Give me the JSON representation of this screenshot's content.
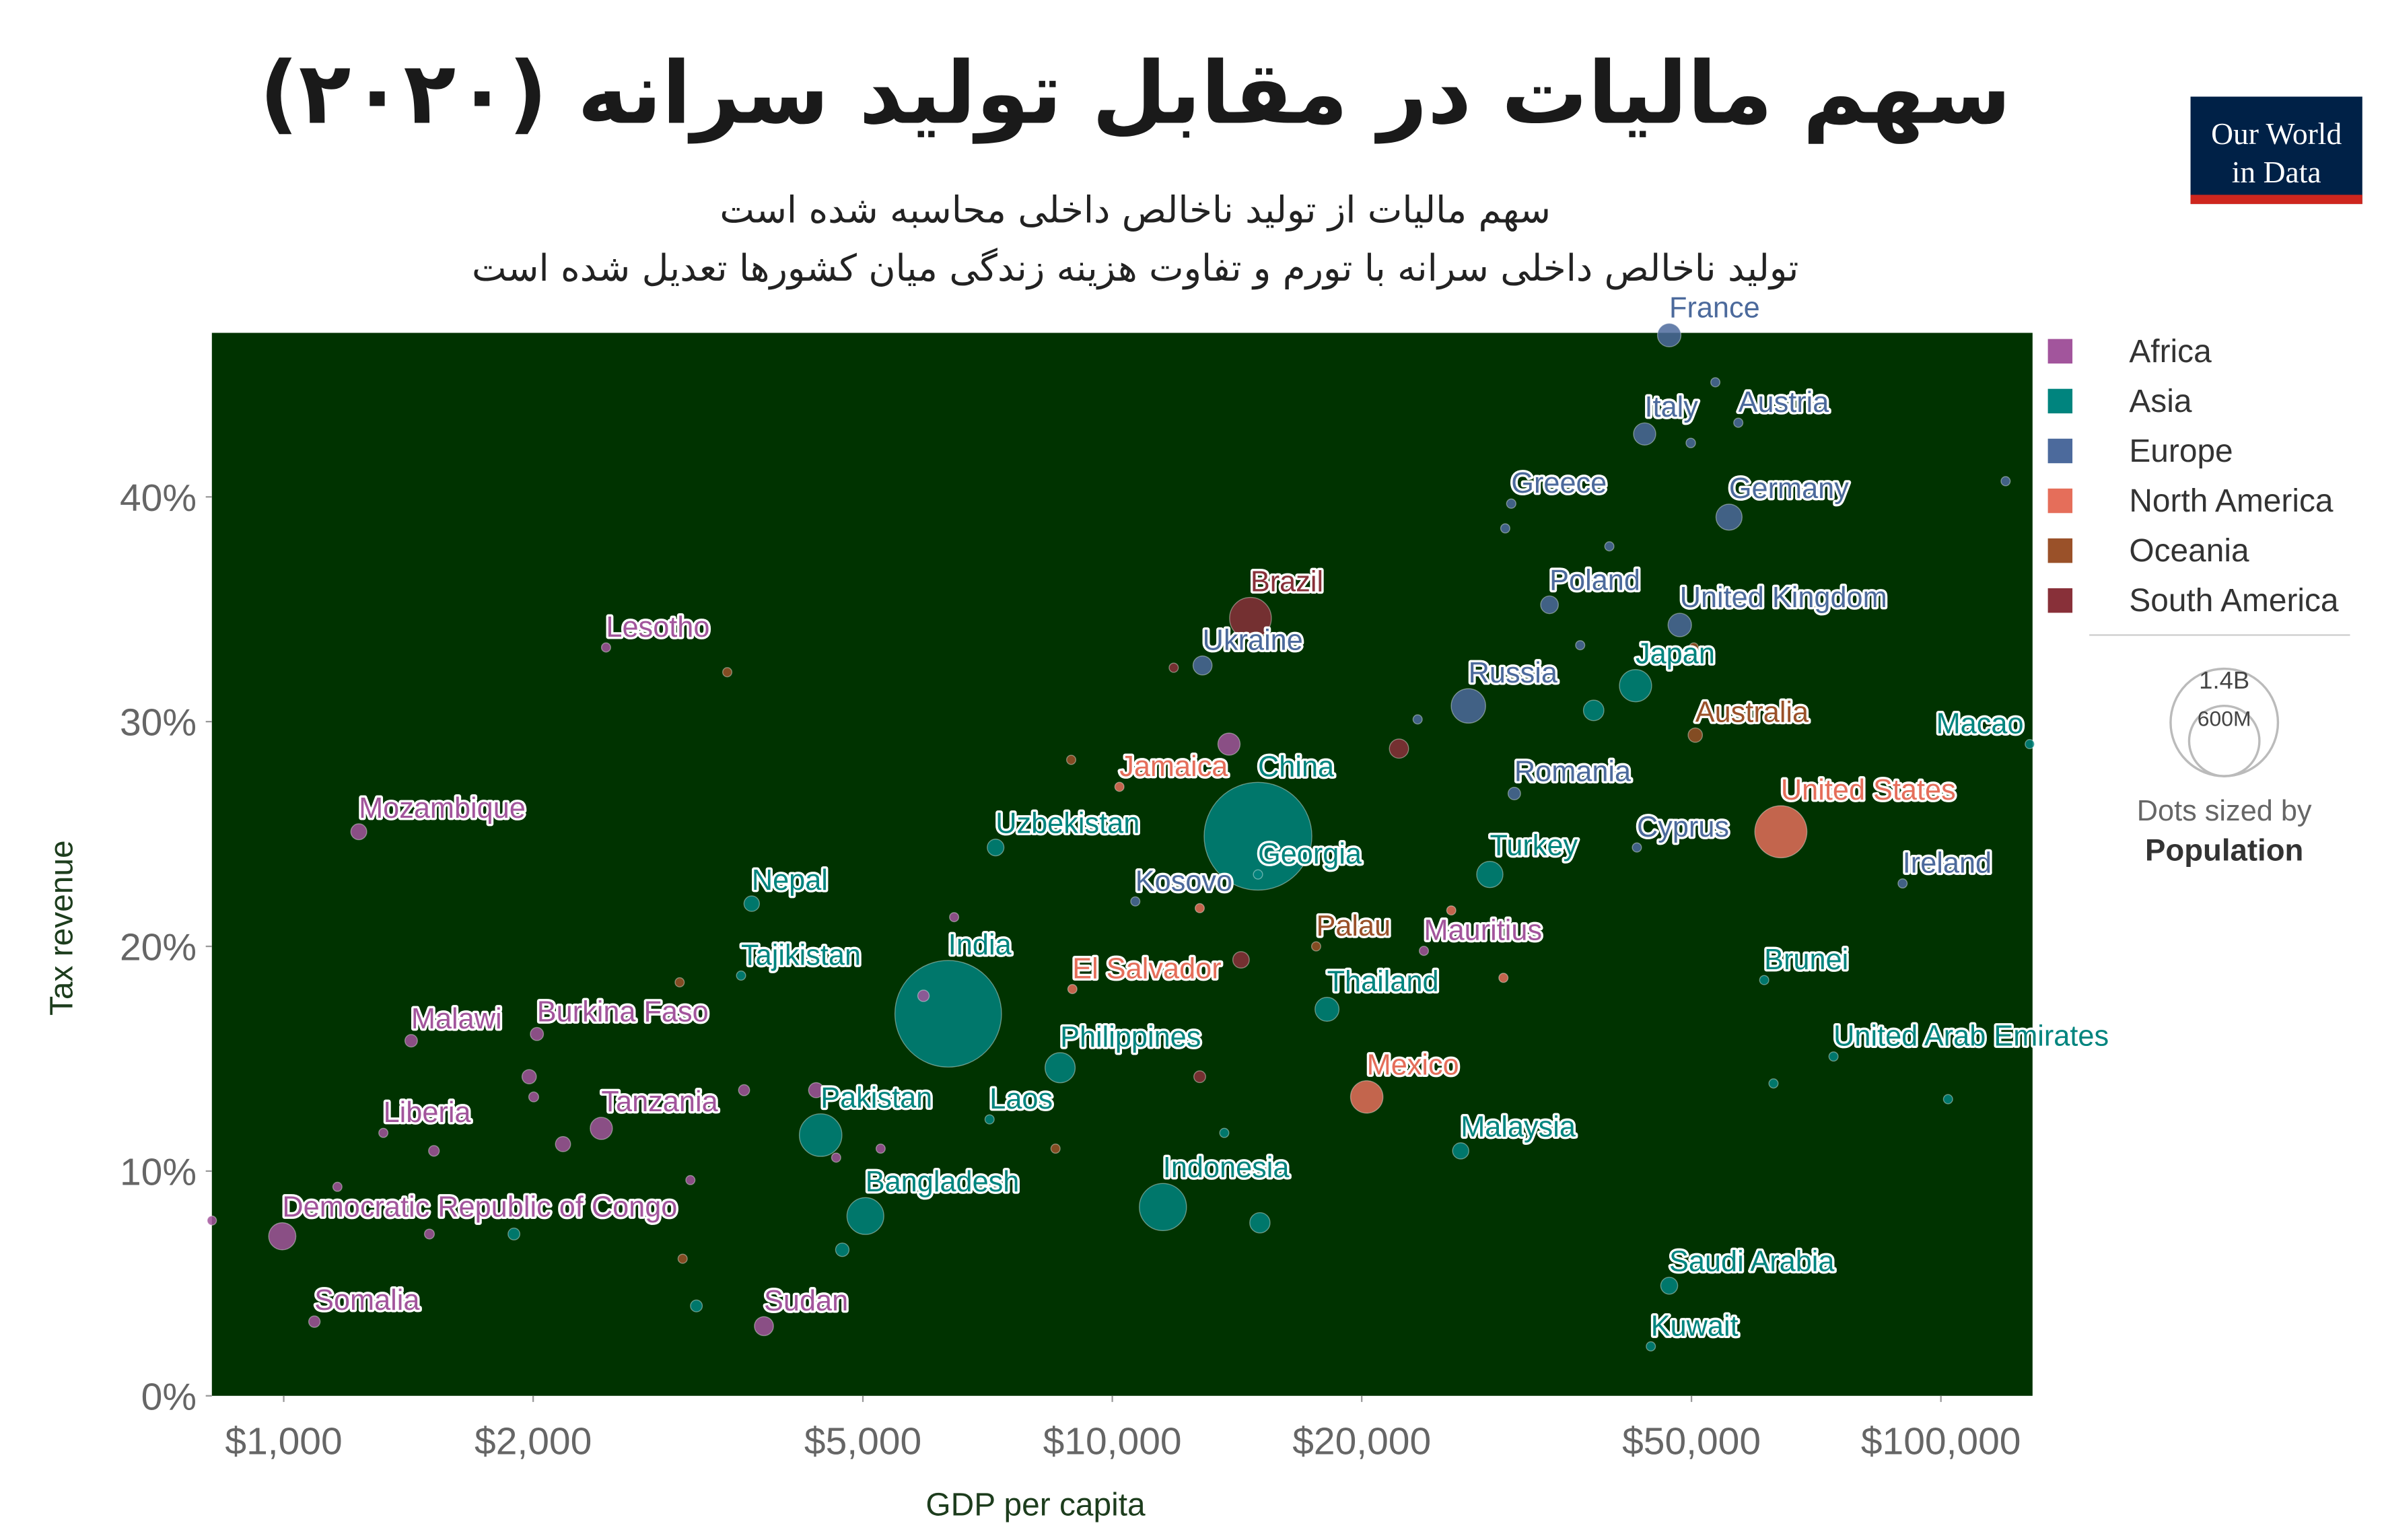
{
  "logo": [
    "Our World",
    "in Data"
  ],
  "chart_data": {
    "type": "scatter",
    "title": "سهم مالیات در مقابل تولید سرانه (۲۰۲۰)",
    "subtitle": [
      "سهم مالیات از تولید ناخالص داخلی محاسبه شده است",
      "تولید ناخالص داخلی سرانه با تورم و تفاوت هزینه زندگی میان کشورها تعدیل شده است"
    ],
    "xlabel": "GDP per capita",
    "ylabel": "Tax revenue",
    "xlog": true,
    "grid": false,
    "xlim": [
      819,
      129000
    ],
    "ylim": [
      0,
      47.3
    ],
    "xticks": [
      {
        "value": 1000,
        "label": "$1,000"
      },
      {
        "value": 2000,
        "label": "$2,000"
      },
      {
        "value": 5000,
        "label": "$5,000"
      },
      {
        "value": 10000,
        "label": "$10,000"
      },
      {
        "value": 20000,
        "label": "$20,000"
      },
      {
        "value": 50000,
        "label": "$50,000"
      },
      {
        "value": 100000,
        "label": "$100,000"
      }
    ],
    "yticks": [
      {
        "value": 0,
        "label": "0%"
      },
      {
        "value": 10,
        "label": "10%"
      },
      {
        "value": 20,
        "label": "20%"
      },
      {
        "value": 30,
        "label": "30%"
      },
      {
        "value": 40,
        "label": "40%"
      }
    ],
    "legend": "right",
    "size_legend": {
      "title": "Dots sized by",
      "variable": "Population",
      "values": [
        {
          "value": 1400000000,
          "label": "1.4B"
        },
        {
          "value": 600000000,
          "label": "600M"
        }
      ]
    },
    "series": [
      {
        "name": "Africa",
        "color": "#a2559c",
        "labels": [
          "Mozambique",
          "Lesotho",
          "Malawi",
          "Burkina Faso",
          "Liberia",
          "Tanzania",
          "Democratic Republic of Congo",
          "Somalia",
          "Sudan",
          "Mauritius",
          null,
          null,
          null,
          null,
          null,
          null,
          null,
          null,
          null,
          null,
          null,
          null,
          null,
          null,
          null,
          null
        ],
        "x": [
          1232,
          2449,
          1425,
          2021,
          1319,
          2417,
          996,
          1089,
          3798,
          23770,
          819,
          1161,
          1499,
          1518,
          1978,
          2003,
          2173,
          3096,
          3594,
          4391,
          4642,
          5253,
          5917,
          6443,
          13830,
          11800
        ],
        "values": [
          25.1,
          33.3,
          15.8,
          16.1,
          11.7,
          11.9,
          7.1,
          3.3,
          3.1,
          19.8,
          7.8,
          9.3,
          7.2,
          10.9,
          14.2,
          13.3,
          11.2,
          9.6,
          13.6,
          13.6,
          10.6,
          11.0,
          17.8,
          21.3,
          29.0,
          15.9
        ],
        "sizes": [
          31000000,
          2200000,
          19000000,
          21000000,
          5000000,
          60000000,
          90000000,
          16000000,
          44000000,
          1300000,
          5000000,
          8000000,
          12000000,
          14000000,
          25000000,
          12000000,
          28000000,
          10000000,
          15000000,
          28000000,
          6000000,
          8000000,
          16000000,
          6000000,
          60000000,
          2500000
        ]
      },
      {
        "name": "Asia",
        "color": "#00847e",
        "labels": [
          "India",
          "China",
          "Nepal",
          "Pakistan",
          "Bangladesh",
          "Indonesia",
          "Philippines",
          "Japan",
          "Thailand",
          "Turkey",
          "Tajikistan",
          "Uzbekistan",
          "Laos",
          "Georgia",
          "Malaysia",
          "United Arab Emirates",
          "Brunei",
          "Saudi Arabia",
          "Kuwait",
          "Macao",
          null,
          null,
          null,
          null,
          null,
          null,
          null,
          null
        ],
        "x": [
          6338,
          14990,
          3671,
          4446,
          5035,
          11510,
          8650,
          42800,
          18160,
          28550,
          3564,
          7230,
          7110,
          14990,
          26330,
          74200,
          61200,
          47000,
          44660,
          128000,
          1896,
          3148,
          4722,
          15070,
          102000,
          62800,
          13650,
          38100
        ],
        "values": [
          17.0,
          24.9,
          21.9,
          11.6,
          8.0,
          8.4,
          14.6,
          31.6,
          17.2,
          23.2,
          18.7,
          24.4,
          12.3,
          23.2,
          10.9,
          15.1,
          18.5,
          4.9,
          2.2,
          29.0,
          7.2,
          4.0,
          6.5,
          7.7,
          13.2,
          13.9,
          11.7,
          30.5
        ],
        "sizes": [
          1380000000,
          1410000000,
          29000000,
          220000000,
          165000000,
          270000000,
          110000000,
          126000000,
          70000000,
          84000000,
          9500000,
          34000000,
          7000000,
          3700000,
          32000000,
          10000000,
          440000,
          35000000,
          4300000,
          650000,
          17000000,
          17000000,
          22000000,
          50000000,
          2900000,
          5000000,
          6000000,
          51000000
        ]
      },
      {
        "name": "Europe",
        "color": "#4c6a9c",
        "labels": [
          "France",
          "Italy",
          "Austria",
          "Greece",
          "Germany",
          "Poland",
          "United Kingdom",
          "Ukraine",
          "Russia",
          "Romania",
          "Kosovo",
          "Ireland",
          "Cyprus",
          null,
          null,
          null,
          null,
          null,
          null,
          null
        ],
        "x": [
          47000,
          43900,
          56950,
          30300,
          55500,
          33700,
          48400,
          12850,
          26900,
          30560,
          10660,
          89900,
          42960,
          39800,
          119700,
          29800,
          49900,
          23360,
          36700,
          53430
        ],
        "values": [
          47.2,
          42.8,
          43.3,
          39.7,
          39.1,
          35.2,
          34.3,
          32.5,
          30.7,
          26.8,
          22.0,
          22.8,
          24.4,
          37.8,
          40.7,
          38.6,
          42.4,
          30.1,
          33.4,
          45.1
        ],
        "sizes": [
          67000000,
          60000000,
          9000000,
          10700000,
          83000000,
          38000000,
          67000000,
          44000000,
          144000000,
          19000000,
          1800000,
          5000000,
          1200000,
          10000000,
          600000,
          5000000,
          11000000,
          7000000,
          10000000,
          6000000
        ]
      },
      {
        "name": "North America",
        "color": "#e56e5a",
        "labels": [
          "United States",
          "Jamaica",
          "El Salvador",
          "Mexico",
          null,
          null,
          null
        ],
        "x": [
          64100,
          10200,
          8950,
          20280,
          25650,
          29650,
          12750
        ],
        "values": [
          25.1,
          27.1,
          18.1,
          13.3,
          21.6,
          18.6,
          21.7
        ],
        "sizes": [
          330000000,
          3000000,
          6500000,
          128000000,
          400000,
          300000,
          2000000
        ]
      },
      {
        "name": "Oceania",
        "color": "#9a5129",
        "labels": [
          "Australia",
          "Palau",
          null,
          null,
          null,
          null,
          null,
          null
        ],
        "x": [
          50530,
          17620,
          3430,
          3005,
          3030,
          8540,
          50320,
          8920
        ],
        "values": [
          29.4,
          20.0,
          32.2,
          18.4,
          6.1,
          11.0,
          33.3,
          28.3
        ],
        "sizes": [
          25000000,
          18000,
          700000,
          9000000,
          9000000,
          900000,
          5000000,
          300000
        ]
      },
      {
        "name": "South America",
        "color": "#883039",
        "labels": [
          "Brazil",
          null,
          null,
          null,
          null
        ],
        "x": [
          14680,
          22180,
          14300,
          12750,
          11860
        ],
        "values": [
          34.6,
          28.8,
          19.4,
          14.2,
          32.4
        ],
        "sizes": [
          212000000,
          45000000,
          33000000,
          17000000,
          3500000
        ]
      }
    ]
  }
}
